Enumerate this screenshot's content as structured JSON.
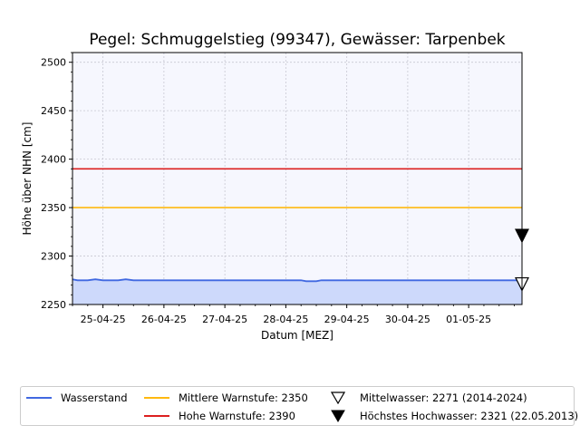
{
  "chart_data": {
    "type": "line",
    "title": "Pegel:  Schmuggelstieg (99347), Gewässer:  Tarpenbek",
    "xlabel": "Datum [MEZ]",
    "ylabel": "Höhe über NHN [cm]",
    "ylim": [
      2250,
      2510
    ],
    "yticks": [
      2250,
      2300,
      2350,
      2400,
      2450,
      2500
    ],
    "xlim": [
      "2025-04-24 12:00",
      "2025-05-01 21:00"
    ],
    "xticks": [
      {
        "date": "2025-04-25",
        "label": "25-04-25"
      },
      {
        "date": "2025-04-26",
        "label": "26-04-25"
      },
      {
        "date": "2025-04-27",
        "label": "27-04-25"
      },
      {
        "date": "2025-04-28",
        "label": "28-04-25"
      },
      {
        "date": "2025-04-29",
        "label": "29-04-25"
      },
      {
        "date": "2025-04-30",
        "label": "30-04-25"
      },
      {
        "date": "2025-05-01",
        "label": "01-05-25"
      }
    ],
    "grid": true,
    "series": [
      {
        "name": "Wasserstand",
        "color": "#4169e1",
        "fill": "#cdd9fb",
        "points": [
          {
            "x": "2025-04-24 12:00",
            "y": 2276
          },
          {
            "x": "2025-04-24 14:00",
            "y": 2275
          },
          {
            "x": "2025-04-24 18:00",
            "y": 2275
          },
          {
            "x": "2025-04-24 21:00",
            "y": 2276
          },
          {
            "x": "2025-04-25 00:00",
            "y": 2275
          },
          {
            "x": "2025-04-25 06:00",
            "y": 2275
          },
          {
            "x": "2025-04-25 09:00",
            "y": 2276
          },
          {
            "x": "2025-04-25 12:00",
            "y": 2275
          },
          {
            "x": "2025-04-26 00:00",
            "y": 2275
          },
          {
            "x": "2025-04-27 00:00",
            "y": 2275
          },
          {
            "x": "2025-04-28 00:00",
            "y": 2275
          },
          {
            "x": "2025-04-28 06:00",
            "y": 2275
          },
          {
            "x": "2025-04-28 08:00",
            "y": 2274
          },
          {
            "x": "2025-04-28 12:00",
            "y": 2274
          },
          {
            "x": "2025-04-28 14:00",
            "y": 2275
          },
          {
            "x": "2025-04-29 00:00",
            "y": 2275
          },
          {
            "x": "2025-04-30 00:00",
            "y": 2275
          },
          {
            "x": "2025-05-01 00:00",
            "y": 2275
          },
          {
            "x": "2025-05-01 21:00",
            "y": 2275
          }
        ]
      },
      {
        "name": "Mittlere Warnstufe: 2350",
        "color": "#ffb90f",
        "y": 2350
      },
      {
        "name": "Hohe Warnstufe: 2390",
        "color": "#dc1f1f",
        "y": 2390
      }
    ],
    "markers": [
      {
        "name": "Mittelwasser: 2271 (2014-2024)",
        "y": 2271,
        "x": "2025-05-01 21:00",
        "style": "open-triangle-down"
      },
      {
        "name": "Höchstes Hochwasser: 2321 (22.05.2013)",
        "y": 2321,
        "x": "2025-05-01 21:00",
        "style": "filled-triangle-down"
      }
    ],
    "legend_position": "bottom"
  },
  "legend": {
    "items": [
      {
        "label": "Wasserstand",
        "color": "#4169e1",
        "kind": "line"
      },
      {
        "label": "Mittlere Warnstufe: 2350",
        "color": "#ffb90f",
        "kind": "line"
      },
      {
        "label": "Mittelwasser: 2271 (2014-2024)",
        "color": "#000000",
        "kind": "open-triangle"
      },
      {
        "label": "Hohe Warnstufe: 2390",
        "color": "#dc1f1f",
        "kind": "line"
      },
      {
        "label": "Höchstes Hochwasser: 2321 (22.05.2013)",
        "color": "#000000",
        "kind": "filled-triangle"
      }
    ]
  }
}
